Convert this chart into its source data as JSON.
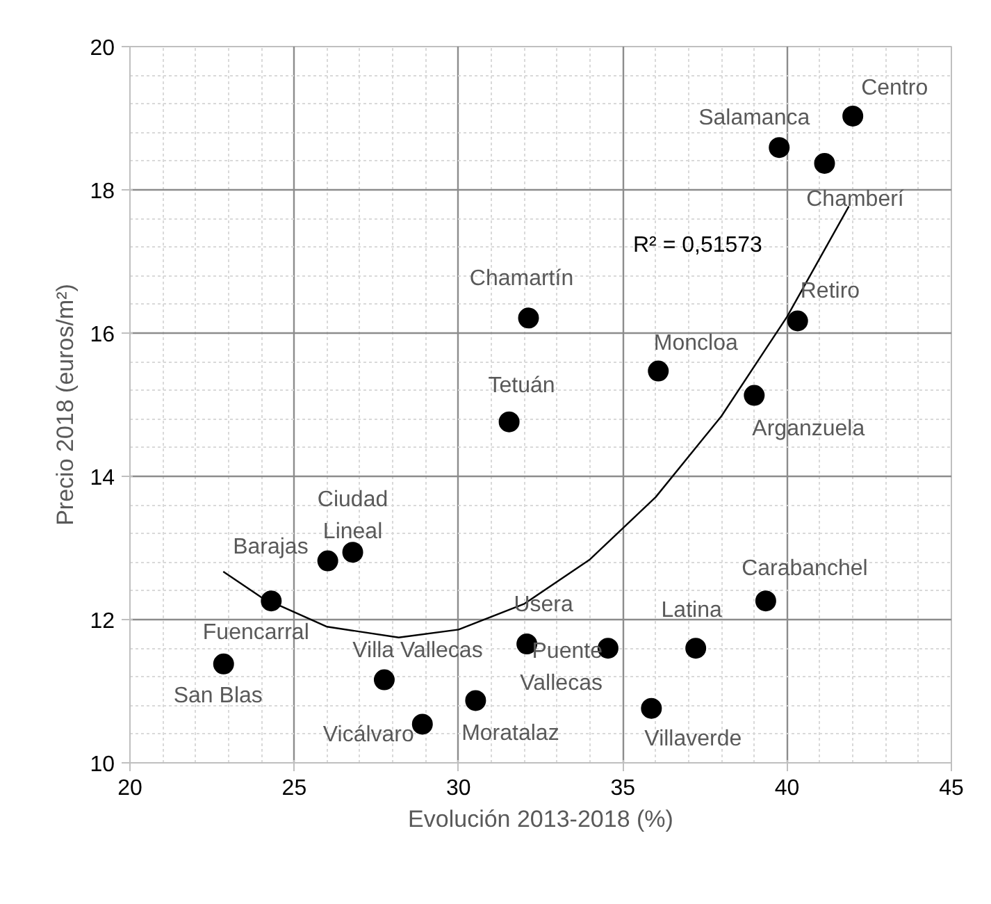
{
  "chart_data": {
    "type": "scatter",
    "xlabel": "Evolución 2013-2018 (%)",
    "ylabel": "Precio 2018 (euros/m²)",
    "xlim": [
      20,
      45
    ],
    "xticks": [
      20,
      25,
      30,
      35,
      40,
      45
    ],
    "ylim": [
      10,
      20
    ],
    "yticks": [
      10,
      12,
      14,
      16,
      18,
      20
    ],
    "grid": true,
    "marker": "circle",
    "series": [
      {
        "color": "#000000",
        "x": [
          42.0,
          39.76,
          41.14,
          40.32,
          36.08,
          39.0,
          32.13,
          31.54,
          26.78,
          26.02,
          24.3,
          22.85,
          27.74,
          28.9,
          30.52,
          32.08,
          34.55,
          37.22,
          39.35,
          35.87
        ],
        "values": [
          19.03,
          18.59,
          18.37,
          16.17,
          15.47,
          15.13,
          16.21,
          14.76,
          12.94,
          12.82,
          12.26,
          11.38,
          11.16,
          10.54,
          10.87,
          11.66,
          11.6,
          11.6,
          12.26,
          10.76
        ]
      },
      {
        "type": "line",
        "marker": "none",
        "color": "#000000",
        "x": [
          22.84,
          24,
          26,
          28.18,
          30,
          32,
          34,
          36,
          38,
          40,
          41.88
        ],
        "values": [
          12.67,
          12.31,
          11.9,
          11.75,
          11.86,
          12.22,
          12.84,
          13.71,
          14.84,
          16.23,
          17.77
        ]
      }
    ],
    "annotations": [
      {
        "text": "Centro",
        "x": 42.0,
        "y": 19.03
      },
      {
        "text": "Salamanca",
        "x": 39.76,
        "y": 18.59
      },
      {
        "text": "Chamberí",
        "x": 41.14,
        "y": 18.37
      },
      {
        "text": "Retiro",
        "x": 40.32,
        "y": 16.17
      },
      {
        "text": "Moncloa",
        "x": 36.08,
        "y": 15.47
      },
      {
        "text": "Arganzuela",
        "x": 39.0,
        "y": 15.13
      },
      {
        "text": "Chamartín",
        "x": 32.13,
        "y": 16.21
      },
      {
        "text": "Tetuán",
        "x": 31.54,
        "y": 14.76
      },
      {
        "text": "Ciudad Lineal",
        "x": 26.78,
        "y": 12.94
      },
      {
        "text": "Barajas",
        "x": 26.02,
        "y": 12.82
      },
      {
        "text": "Fuencarral",
        "x": 24.3,
        "y": 12.26
      },
      {
        "text": "San Blas",
        "x": 22.85,
        "y": 11.38
      },
      {
        "text": "Villa Vallecas",
        "x": 27.74,
        "y": 11.16
      },
      {
        "text": "Vicálvaro",
        "x": 28.9,
        "y": 10.54
      },
      {
        "text": "Moratalaz",
        "x": 30.52,
        "y": 10.87
      },
      {
        "text": "Usera",
        "x": 32.08,
        "y": 11.66
      },
      {
        "text": "Puente Vallecas",
        "x": 34.55,
        "y": 11.6
      },
      {
        "text": "Latina",
        "x": 37.22,
        "y": 11.6
      },
      {
        "text": "Carabanchel",
        "x": 39.35,
        "y": 12.26
      },
      {
        "text": "Villaverde",
        "x": 35.87,
        "y": 10.76
      },
      "R² = 0,51573"
    ]
  }
}
